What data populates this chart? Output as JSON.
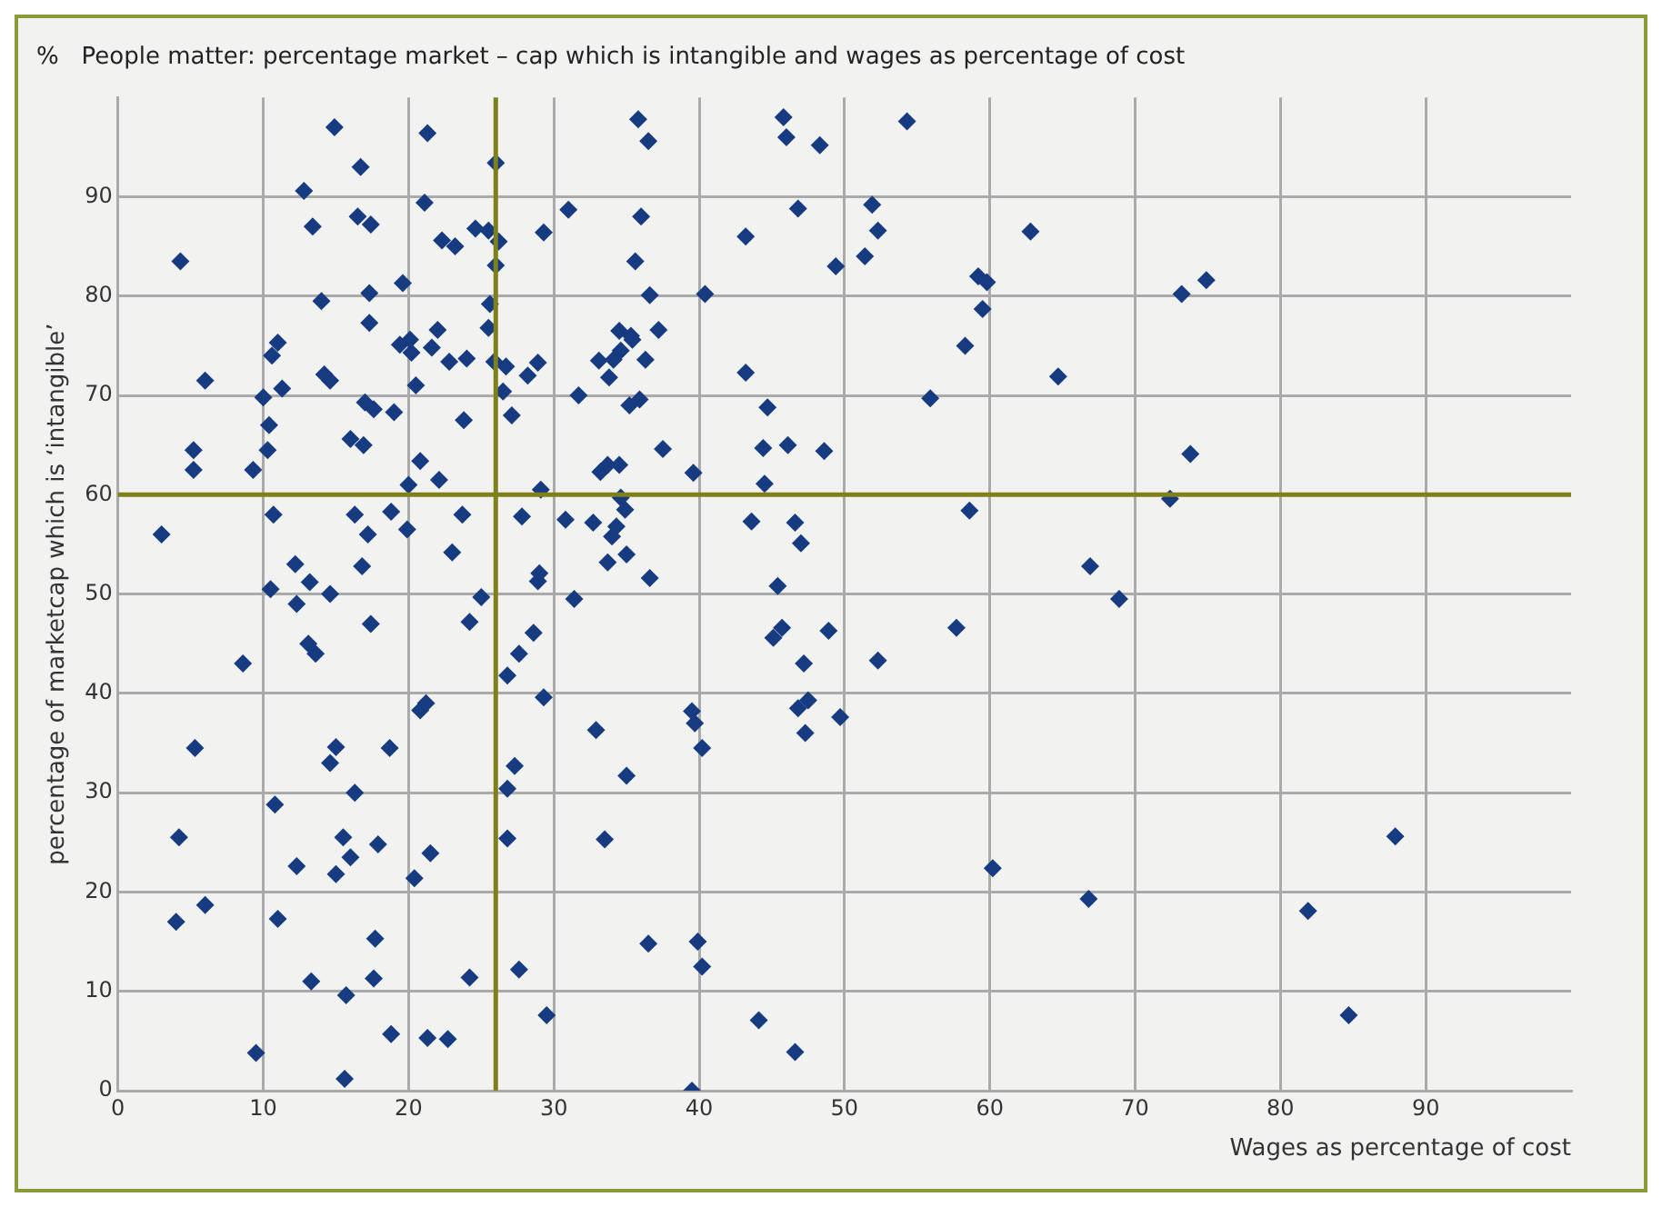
{
  "chart_data": {
    "type": "scatter",
    "title": "%   People matter: percentage market – cap which is intangible and wages as percentage of cost",
    "xlabel": "Wages as percentage of cost",
    "ylabel": "percentage of marketcap which is ‘intangible’",
    "xlim": [
      0,
      100
    ],
    "ylim": [
      0,
      100
    ],
    "xticks": [
      0,
      10,
      20,
      30,
      40,
      50,
      60,
      70,
      80,
      90
    ],
    "yticks": [
      0,
      10,
      20,
      30,
      40,
      50,
      60,
      70,
      80,
      90
    ],
    "grid": true,
    "legend": false,
    "marker": "diamond",
    "ref_lines": [
      {
        "axis": "x",
        "value": 26,
        "color": "#7f8019"
      },
      {
        "axis": "y",
        "value": 60,
        "color": "#7f8019"
      }
    ],
    "series": [
      {
        "color": "#173b80",
        "x": [
          3,
          4.3,
          4.2,
          4,
          5.2,
          5.2,
          5.3,
          6,
          6,
          8.6,
          9.3,
          9.5,
          10,
          10.3,
          10.4,
          10.5,
          10.6,
          10.7,
          10.8,
          11,
          11,
          11.3,
          12.2,
          12.3,
          12.3,
          12.8,
          13.1,
          13.2,
          13.3,
          13.4,
          13.6,
          14,
          14.2,
          14.6,
          14.6,
          14.6,
          14.9,
          15,
          15,
          15.5,
          15.6,
          15.7,
          16,
          16,
          16.3,
          16.3,
          16.5,
          16.7,
          16.8,
          16.9,
          17,
          17.3,
          17.2,
          17.3,
          17.4,
          17.4,
          17.6,
          17.6,
          17.7,
          17.9,
          18.7,
          18.8,
          18.8,
          19,
          19.4,
          19.6,
          19.9,
          20,
          20.1,
          20.2,
          20.4,
          20.5,
          20.8,
          20.8,
          21.1,
          21.2,
          21.3,
          21.3,
          21.5,
          21.6,
          22,
          22.1,
          22.3,
          22.7,
          22.8,
          23,
          23.2,
          23.7,
          23.8,
          24,
          24.2,
          24.2,
          24.6,
          25,
          25.5,
          25.5,
          25.6,
          25.9,
          26,
          26,
          26.2,
          26.5,
          26.7,
          26.8,
          26.8,
          26.8,
          27.1,
          27.3,
          27.6,
          27.6,
          27.8,
          28.2,
          28.6,
          28.9,
          28.9,
          29,
          29.1,
          29.3,
          29.3,
          29.5,
          31,
          30.8,
          31.4,
          31.7,
          32.9,
          32.7,
          33.2,
          33.1,
          33.5,
          33.7,
          33.7,
          33.8,
          34,
          34.1,
          34.3,
          34.5,
          34.5,
          34.6,
          34.9,
          34.6,
          35,
          35,
          35.2,
          35.3,
          35.4,
          35.6,
          35.8,
          35.9,
          36,
          36.5,
          36.3,
          36.5,
          36.6,
          36.6,
          37.2,
          37.5,
          39.5,
          39.6,
          39.5,
          39.7,
          39.9,
          40.2,
          40.2,
          40.4,
          43.2,
          43.2,
          43.6,
          44.1,
          44.4,
          44.5,
          44.7,
          45.1,
          45.4,
          45.7,
          45.8,
          46,
          46.1,
          46.6,
          46.8,
          46.8,
          47,
          46.6,
          47.2,
          47.3,
          47.5,
          48.3,
          48.6,
          48.9,
          49.4,
          49.7,
          51.4,
          51.9,
          52.3,
          52.3,
          54.3,
          55.9,
          57.7,
          58.3,
          58.6,
          59.2,
          59.5,
          59.8,
          60.2,
          62.8,
          64.7,
          66.9,
          66.8,
          68.9,
          72.4,
          73.2,
          73.8,
          74.9,
          81.9,
          84.7,
          87.9
        ],
        "values": [
          56,
          83.5,
          25.5,
          17,
          64.5,
          62.5,
          34.5,
          71.5,
          18.7,
          43,
          62.5,
          3.8,
          69.8,
          64.5,
          67,
          50.5,
          74,
          58,
          28.8,
          75.3,
          17.3,
          70.7,
          53,
          49,
          22.6,
          90.6,
          45,
          51.2,
          11,
          87,
          44,
          79.5,
          72.1,
          71.5,
          33,
          50,
          97,
          21.8,
          34.6,
          25.5,
          1.2,
          9.6,
          23.5,
          65.6,
          58,
          30,
          88,
          93,
          52.8,
          65,
          69.3,
          77.3,
          56,
          80.3,
          47,
          87.2,
          68.6,
          11.3,
          15.3,
          24.8,
          34.5,
          58.3,
          5.7,
          68.3,
          75.1,
          81.3,
          56.5,
          61,
          75.6,
          74.3,
          21.4,
          71,
          63.4,
          38.3,
          89.4,
          39,
          5.3,
          96.4,
          23.9,
          74.8,
          76.6,
          61.5,
          85.6,
          5.2,
          73.4,
          54.2,
          85,
          58,
          67.5,
          73.7,
          47.2,
          11.4,
          86.8,
          49.7,
          86.6,
          76.8,
          79.2,
          73.4,
          83.1,
          93.4,
          85.5,
          70.4,
          72.9,
          41.8,
          30.4,
          25.4,
          68,
          32.7,
          12.2,
          44,
          57.8,
          72,
          46.1,
          73.3,
          51.3,
          52.1,
          60.5,
          86.4,
          39.6,
          7.6,
          88.7,
          57.5,
          49.5,
          70,
          36.3,
          57.2,
          62.3,
          73.5,
          25.3,
          63,
          53.2,
          71.8,
          55.8,
          73.6,
          56.8,
          76.5,
          63,
          59.7,
          58.5,
          74.5,
          54,
          31.7,
          69,
          76,
          75.6,
          83.5,
          97.8,
          69.6,
          88,
          95.6,
          73.6,
          14.8,
          80.1,
          51.6,
          76.6,
          64.6,
          38.2,
          62.2,
          0,
          37,
          15,
          12.5,
          34.5,
          80.2,
          86,
          72.3,
          57.3,
          7.1,
          64.7,
          61.1,
          68.8,
          45.6,
          50.8,
          46.6,
          98,
          96,
          65,
          57.2,
          88.8,
          38.5,
          55.1,
          3.9,
          43,
          36,
          39.3,
          95.2,
          64.4,
          46.3,
          83,
          37.6,
          84,
          89.2,
          86.6,
          43.3,
          97.6,
          69.7,
          46.6,
          75,
          58.4,
          82,
          78.7,
          81.4,
          22.4,
          86.5,
          71.9,
          52.8,
          19.3,
          49.5,
          59.6,
          80.2,
          64.1,
          81.6,
          18.1,
          7.6,
          25.6
        ]
      }
    ]
  }
}
